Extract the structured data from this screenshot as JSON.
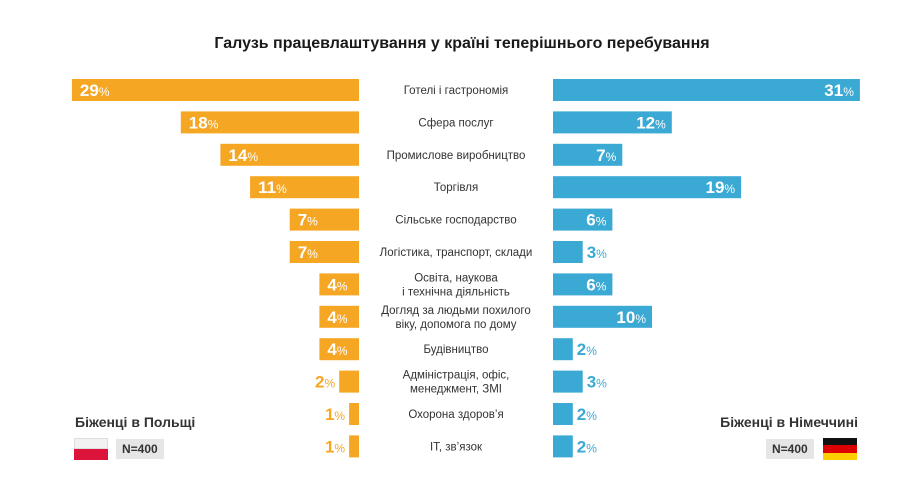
{
  "chart_data": {
    "type": "bar",
    "title": "Галузь працевлаштування у країні теперішнього перебування",
    "categories": [
      [
        "Готелі і гастрономія"
      ],
      [
        "Сфера послуг"
      ],
      [
        "Промислове виробництво"
      ],
      [
        "Торгівля"
      ],
      [
        "Сільське господарство"
      ],
      [
        "Логістика, транспорт, склади"
      ],
      [
        "Освіта, наукова",
        "і технічна діяльність"
      ],
      [
        "Догляд за людьми похилого",
        "віку, допомога по дому"
      ],
      [
        "Будівництво"
      ],
      [
        "Адміністрація, офіс,",
        "менеджмент, ЗМІ"
      ],
      [
        "Охорона здоров’я"
      ],
      [
        "IT, зв’язок"
      ]
    ],
    "series": [
      {
        "name": "Біженці в Польщі",
        "color": "#f5a623",
        "values": [
          29,
          18,
          14,
          11,
          7,
          7,
          4,
          4,
          4,
          2,
          1,
          1
        ]
      },
      {
        "name": "Біженці в Німеччині",
        "color": "#3aa9d3",
        "values": [
          31,
          12,
          7,
          19,
          6,
          3,
          6,
          10,
          2,
          3,
          2,
          2
        ]
      }
    ],
    "unit": "%"
  },
  "legend": {
    "left": {
      "label": "Біженці в Польщі",
      "n": "N=400",
      "flag": "poland-flag"
    },
    "right": {
      "label": "Біженці в Німеччині",
      "n": "N=400",
      "flag": "germany-flag"
    }
  }
}
